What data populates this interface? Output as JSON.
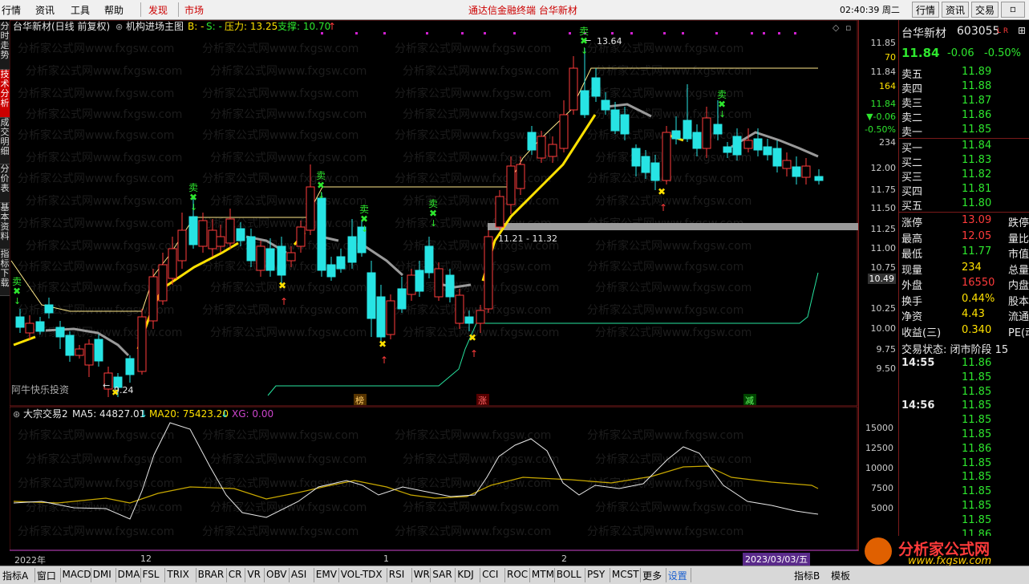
{
  "menu": {
    "items": [
      "行情",
      "资讯",
      "工具",
      "帮助"
    ],
    "hot": [
      "发现",
      "市场"
    ],
    "ad_text": "通达信金融终端   台华新材",
    "clock": "02:40:39 周二",
    "right_buttons": [
      "行情",
      "资讯",
      "交易"
    ]
  },
  "left_tabs": [
    "分时走势",
    "技术分析",
    "成交明细",
    "分价表",
    "基本资料",
    "指标下载"
  ],
  "main": {
    "stock_title": "台华新材(日线 前复权)",
    "indicator_name": "机构进场主图",
    "b_label": "B: -",
    "s_label": "S: -",
    "pressure": "压力: 13.25",
    "support": "支撑: 10.70",
    "high_marker": "13.64",
    "low_marker": "9.24",
    "range_label": "11.21 - 11.32",
    "watermark_author": "阿牛快乐投资",
    "sell_label": "卖",
    "event_labels": [
      "榜",
      "涨",
      "减"
    ],
    "site_watermark": "分析家公式网www.fxgsw.com"
  },
  "sub": {
    "indicator": "大宗交易2",
    "ma5": "MA5: 44827.01",
    "ma20": "MA20: 75423.20",
    "xg": "XG: 0.00",
    "axis": [
      "15000",
      "12500",
      "10000",
      "7500",
      "5000"
    ]
  },
  "xaxis": [
    "2022年",
    "12",
    "1",
    "2",
    "2023/03/03/五"
  ],
  "price_axis": [
    "11.85",
    "70",
    "11.84",
    "164",
    "11.84",
    "▼-0.06",
    "-0.50%",
    "234",
    "12.00",
    "11.75",
    "11.50",
    "11.25",
    "11.00",
    "10.75",
    "10.49",
    "10.25",
    "10.00",
    "9.75",
    "9.50"
  ],
  "quote": {
    "name": "台华新材",
    "code": "603055",
    "flags": "L R",
    "price": "11.84",
    "change": "-0.06",
    "pct": "-0.50%",
    "asks": [
      [
        "卖五",
        "11.89"
      ],
      [
        "卖四",
        "11.88"
      ],
      [
        "卖三",
        "11.87"
      ],
      [
        "卖二",
        "11.86"
      ],
      [
        "卖一",
        "11.85"
      ]
    ],
    "bids": [
      [
        "买一",
        "11.84"
      ],
      [
        "买二",
        "11.83"
      ],
      [
        "买三",
        "11.82"
      ],
      [
        "买四",
        "11.81"
      ],
      [
        "买五",
        "11.80"
      ]
    ],
    "stats": [
      [
        "涨停",
        "13.09",
        "跌停"
      ],
      [
        "最高",
        "12.05",
        "量比"
      ],
      [
        "最低",
        "11.77",
        "市值"
      ],
      [
        "现量",
        "234",
        "总量"
      ],
      [
        "外盘",
        "16550",
        "内盘"
      ],
      [
        "换手",
        "0.44%",
        "股本"
      ],
      [
        "净资",
        "4.43",
        "流通"
      ],
      [
        "收益(三)",
        "0.340",
        "PE(动"
      ]
    ],
    "trade_state": "交易状态: 闭市阶段 15",
    "ticks": [
      [
        "14:55",
        "11.86"
      ],
      [
        "",
        "11.85"
      ],
      [
        "",
        "11.85"
      ],
      [
        "14:56",
        "11.85"
      ],
      [
        "",
        "11.85"
      ],
      [
        "",
        "11.85"
      ],
      [
        "",
        "11.86"
      ],
      [
        "",
        "11.85"
      ],
      [
        "",
        "11.85"
      ],
      [
        "",
        "11.85"
      ],
      [
        "",
        "11.85"
      ],
      [
        "",
        "11.85"
      ],
      [
        "",
        "11.86"
      ],
      [
        "",
        "11.85"
      ]
    ]
  },
  "bottom_tabs": [
    "指标A",
    "窗口",
    "MACD",
    "DMI",
    "DMA",
    "FSL",
    "TRIX",
    "BRAR",
    "CR",
    "VR",
    "OBV",
    "ASI",
    "EMV",
    "VOL-TDX",
    "RSI",
    "WR",
    "SAR",
    "KDJ",
    "CCI",
    "ROC",
    "MTM",
    "BOLL",
    "PSY",
    "MCST",
    "更多",
    "设置"
  ],
  "bottom_right": [
    "指标B",
    "模板"
  ],
  "logo": {
    "title": "分析家公式网",
    "url": "www.fxgsw.com"
  }
}
